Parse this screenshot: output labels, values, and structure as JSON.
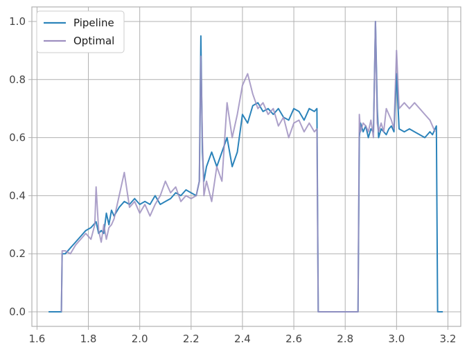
{
  "chart_data": {
    "type": "line",
    "title": "",
    "xlabel": "",
    "ylabel": "",
    "xlim": [
      1.58,
      3.25
    ],
    "ylim": [
      -0.05,
      1.05
    ],
    "xticks": [
      1.6,
      1.8,
      2.0,
      2.2,
      2.4,
      2.6,
      2.8,
      3.0,
      3.2
    ],
    "xtick_labels": [
      "1.6",
      "1.8",
      "2.0",
      "2.2",
      "2.4",
      "2.6",
      "2.8",
      "3.0",
      "3.2"
    ],
    "yticks": [
      0.0,
      0.2,
      0.4,
      0.6,
      0.8,
      1.0
    ],
    "ytick_labels": [
      "0.0",
      "0.2",
      "0.4",
      "0.6",
      "0.8",
      "1.0"
    ],
    "grid": true,
    "legend_position": "upper-left",
    "series": [
      {
        "name": "Pipeline",
        "color": "#2b83ba",
        "x": [
          1.645,
          1.695,
          1.698,
          1.71,
          1.73,
          1.75,
          1.77,
          1.79,
          1.81,
          1.83,
          1.84,
          1.85,
          1.86,
          1.87,
          1.88,
          1.89,
          1.9,
          1.92,
          1.94,
          1.96,
          1.98,
          2.0,
          2.02,
          2.04,
          2.06,
          2.08,
          2.1,
          2.12,
          2.14,
          2.16,
          2.18,
          2.2,
          2.22,
          2.232,
          2.238,
          2.244,
          2.25,
          2.26,
          2.28,
          2.3,
          2.32,
          2.34,
          2.36,
          2.38,
          2.4,
          2.42,
          2.44,
          2.46,
          2.48,
          2.5,
          2.52,
          2.54,
          2.56,
          2.58,
          2.6,
          2.62,
          2.64,
          2.66,
          2.68,
          2.69,
          2.695,
          2.7,
          2.75,
          2.8,
          2.85,
          2.855,
          2.86,
          2.87,
          2.88,
          2.89,
          2.9,
          2.91,
          2.918,
          2.925,
          2.93,
          2.94,
          2.95,
          2.96,
          2.97,
          2.98,
          2.99,
          3.0,
          3.01,
          3.03,
          3.05,
          3.07,
          3.09,
          3.11,
          3.13,
          3.14,
          3.15,
          3.155,
          3.16,
          3.18
        ],
        "y": [
          0.0,
          0.0,
          0.2,
          0.2,
          0.22,
          0.24,
          0.26,
          0.28,
          0.29,
          0.31,
          0.27,
          0.28,
          0.27,
          0.34,
          0.3,
          0.35,
          0.33,
          0.36,
          0.38,
          0.37,
          0.39,
          0.37,
          0.38,
          0.37,
          0.4,
          0.37,
          0.38,
          0.39,
          0.41,
          0.4,
          0.42,
          0.41,
          0.4,
          0.45,
          0.95,
          0.55,
          0.45,
          0.5,
          0.55,
          0.5,
          0.55,
          0.6,
          0.5,
          0.55,
          0.68,
          0.65,
          0.71,
          0.72,
          0.69,
          0.7,
          0.68,
          0.7,
          0.67,
          0.66,
          0.7,
          0.69,
          0.66,
          0.7,
          0.69,
          0.7,
          0.0,
          0.0,
          0.0,
          0.0,
          0.0,
          0.6,
          0.65,
          0.62,
          0.64,
          0.6,
          0.63,
          0.62,
          1.0,
          0.7,
          0.6,
          0.63,
          0.62,
          0.61,
          0.63,
          0.64,
          0.62,
          0.82,
          0.63,
          0.62,
          0.63,
          0.62,
          0.61,
          0.6,
          0.62,
          0.61,
          0.63,
          0.64,
          0.0,
          0.0
        ]
      },
      {
        "name": "Optimal",
        "color": "#9e8fc0",
        "x": [
          1.695,
          1.698,
          1.71,
          1.73,
          1.75,
          1.77,
          1.79,
          1.81,
          1.825,
          1.83,
          1.84,
          1.85,
          1.86,
          1.87,
          1.88,
          1.89,
          1.9,
          1.92,
          1.94,
          1.96,
          1.98,
          2.0,
          2.02,
          2.04,
          2.06,
          2.08,
          2.1,
          2.12,
          2.14,
          2.16,
          2.18,
          2.2,
          2.22,
          2.232,
          2.238,
          2.244,
          2.25,
          2.26,
          2.28,
          2.3,
          2.32,
          2.34,
          2.36,
          2.38,
          2.4,
          2.42,
          2.44,
          2.46,
          2.48,
          2.5,
          2.52,
          2.54,
          2.56,
          2.58,
          2.6,
          2.62,
          2.64,
          2.66,
          2.68,
          2.69,
          2.695,
          2.7,
          2.75,
          2.8,
          2.85,
          2.855,
          2.86,
          2.87,
          2.88,
          2.89,
          2.9,
          2.91,
          2.918,
          2.925,
          2.93,
          2.94,
          2.95,
          2.96,
          2.97,
          2.98,
          2.99,
          3.0,
          3.01,
          3.03,
          3.05,
          3.07,
          3.09,
          3.11,
          3.13,
          3.14,
          3.15
        ],
        "y": [
          0.0,
          0.21,
          0.21,
          0.2,
          0.23,
          0.25,
          0.27,
          0.25,
          0.3,
          0.43,
          0.28,
          0.24,
          0.3,
          0.25,
          0.29,
          0.3,
          0.32,
          0.4,
          0.48,
          0.36,
          0.38,
          0.34,
          0.37,
          0.33,
          0.37,
          0.4,
          0.45,
          0.41,
          0.43,
          0.38,
          0.4,
          0.39,
          0.4,
          0.45,
          0.88,
          0.6,
          0.4,
          0.45,
          0.38,
          0.5,
          0.45,
          0.72,
          0.6,
          0.68,
          0.78,
          0.82,
          0.75,
          0.7,
          0.72,
          0.68,
          0.7,
          0.64,
          0.67,
          0.6,
          0.65,
          0.66,
          0.62,
          0.65,
          0.62,
          0.63,
          0.0,
          0.0,
          0.0,
          0.0,
          0.0,
          0.68,
          0.62,
          0.65,
          0.64,
          0.62,
          0.66,
          0.6,
          1.0,
          0.65,
          0.62,
          0.65,
          0.62,
          0.7,
          0.68,
          0.66,
          0.63,
          0.9,
          0.7,
          0.72,
          0.7,
          0.72,
          0.7,
          0.68,
          0.66,
          0.64,
          0.62
        ]
      }
    ]
  }
}
